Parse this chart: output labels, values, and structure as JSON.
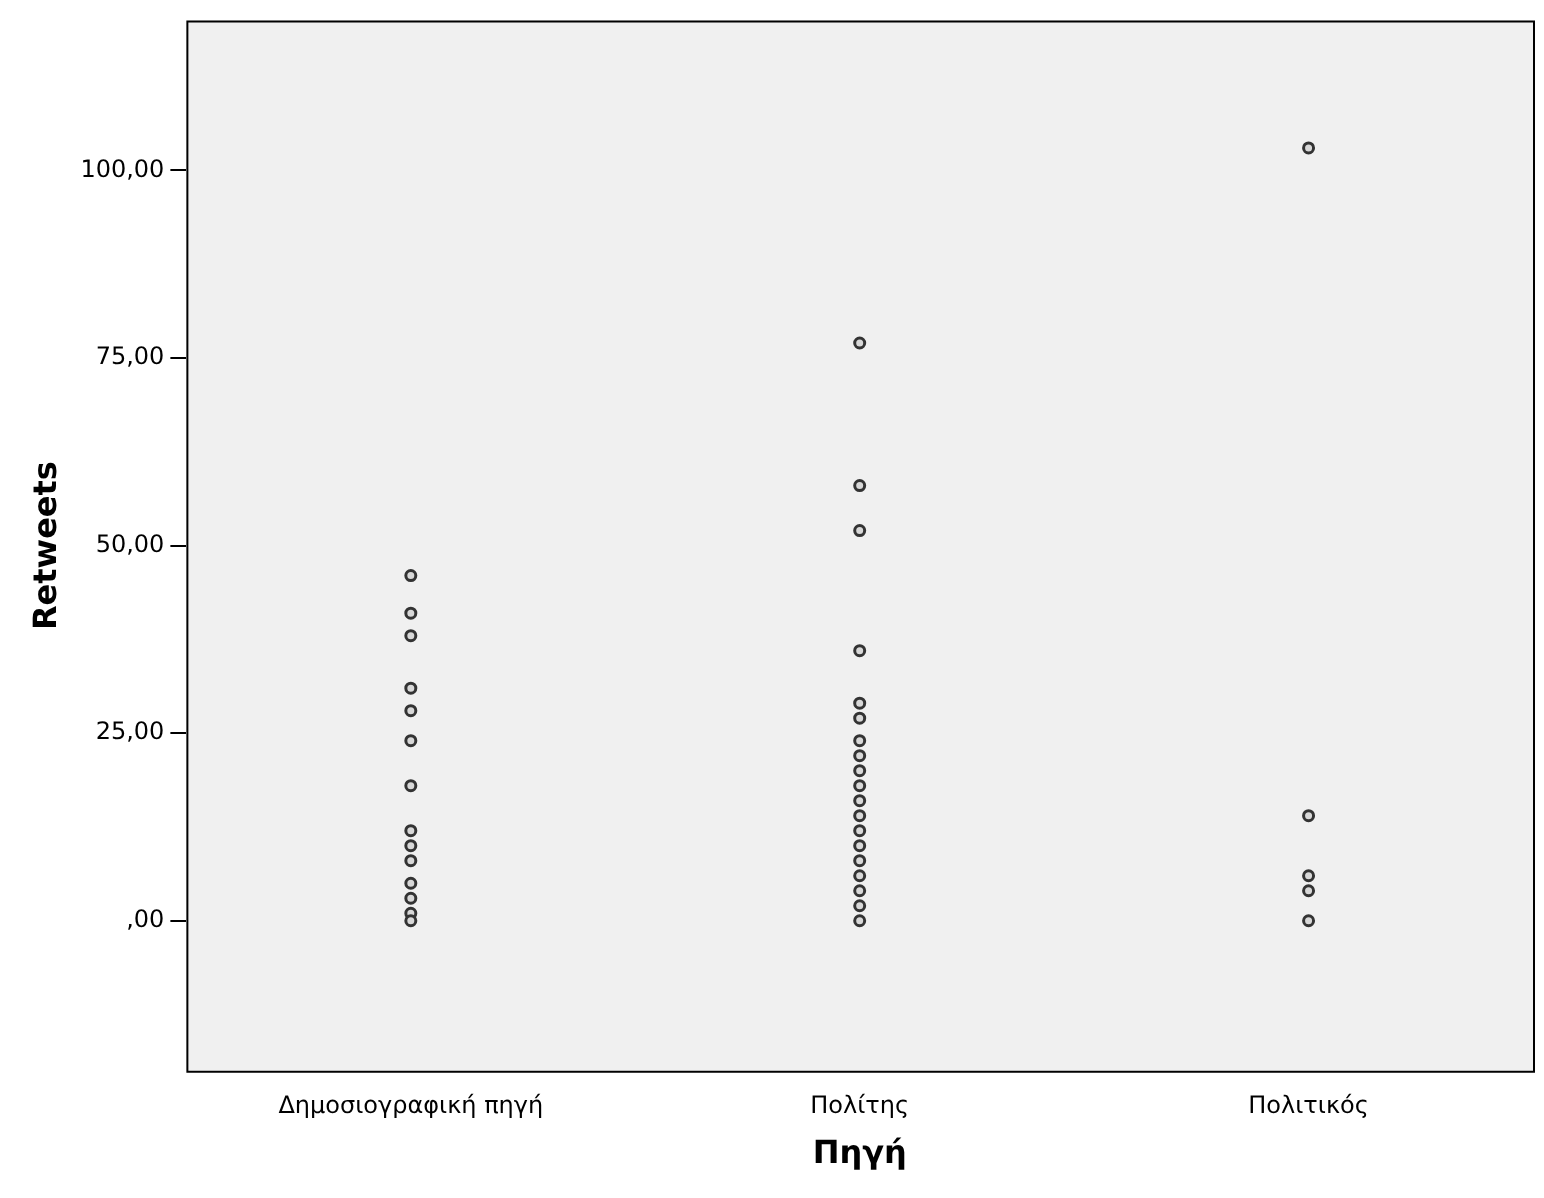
{
  "chart_data": {
    "type": "scatter",
    "xlabel": "Πηγή",
    "ylabel": "Retweets",
    "categories": [
      "Δημοσιογραφική πηγή",
      "Πολίτης",
      "Πολιτικός"
    ],
    "ylim": [
      -20,
      120
    ],
    "yticks": [
      {
        "value": 0,
        "label": ",00"
      },
      {
        "value": 25,
        "label": "25,00"
      },
      {
        "value": 50,
        "label": "50,00"
      },
      {
        "value": 75,
        "label": "75,00"
      },
      {
        "value": 100,
        "label": "100,00"
      }
    ],
    "grid": false,
    "legend": false,
    "marker": "circle",
    "series": [
      {
        "color": "#333333",
        "x": [
          "Δημοσιογραφική πηγή",
          "Δημοσιογραφική πηγή",
          "Δημοσιογραφική πηγή",
          "Δημοσιογραφική πηγή",
          "Δημοσιογραφική πηγή",
          "Δημοσιογραφική πηγή",
          "Δημοσιογραφική πηγή",
          "Δημοσιογραφική πηγή",
          "Δημοσιογραφική πηγή",
          "Δημοσιογραφική πηγή",
          "Δημοσιογραφική πηγή",
          "Δημοσιογραφική πηγή",
          "Δημοσιογραφική πηγή",
          "Δημοσιογραφική πηγή",
          "Πολίτης",
          "Πολίτης",
          "Πολίτης",
          "Πολίτης",
          "Πολίτης",
          "Πολίτης",
          "Πολίτης",
          "Πολίτης",
          "Πολίτης",
          "Πολίτης",
          "Πολίτης",
          "Πολίτης",
          "Πολίτης",
          "Πολίτης",
          "Πολίτης",
          "Πολίτης",
          "Πολίτης",
          "Πολίτης",
          "Πολίτης",
          "Πολιτικός",
          "Πολιτικός",
          "Πολιτικός",
          "Πολιτικός",
          "Πολιτικός"
        ],
        "values": [
          46,
          41,
          38,
          31,
          28,
          24,
          18,
          12,
          10,
          8,
          5,
          3,
          1,
          0,
          77,
          58,
          52,
          36,
          29,
          27,
          24,
          22,
          20,
          18,
          16,
          14,
          12,
          10,
          8,
          6,
          4,
          2,
          0,
          103,
          14,
          6,
          4,
          0
        ]
      }
    ]
  }
}
